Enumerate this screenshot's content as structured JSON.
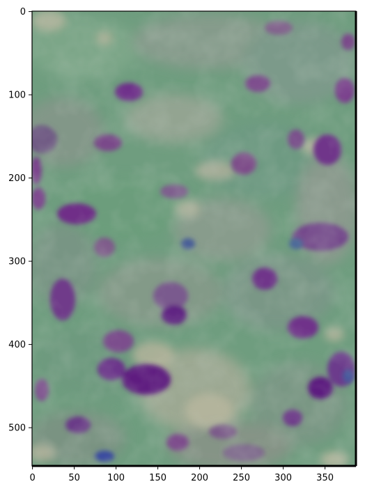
{
  "image": {
    "description_colors": {
      "base_green": "#6a9a7a",
      "muted_grey_green": "#8a9a88",
      "purple_blob": "#6a3a86",
      "dark_purple": "#5a1f7f",
      "pale_beige": "#b5b39a",
      "blue_accent": "#3a4aa0"
    }
  },
  "axes": {
    "x_ticks": [
      "0",
      "50",
      "100",
      "150",
      "200",
      "250",
      "300",
      "350"
    ],
    "y_ticks": [
      "0",
      "100",
      "200",
      "300",
      "400",
      "500"
    ],
    "xlim": [
      0,
      387
    ],
    "ylim": [
      547,
      0
    ],
    "frame_color": "#000000"
  }
}
